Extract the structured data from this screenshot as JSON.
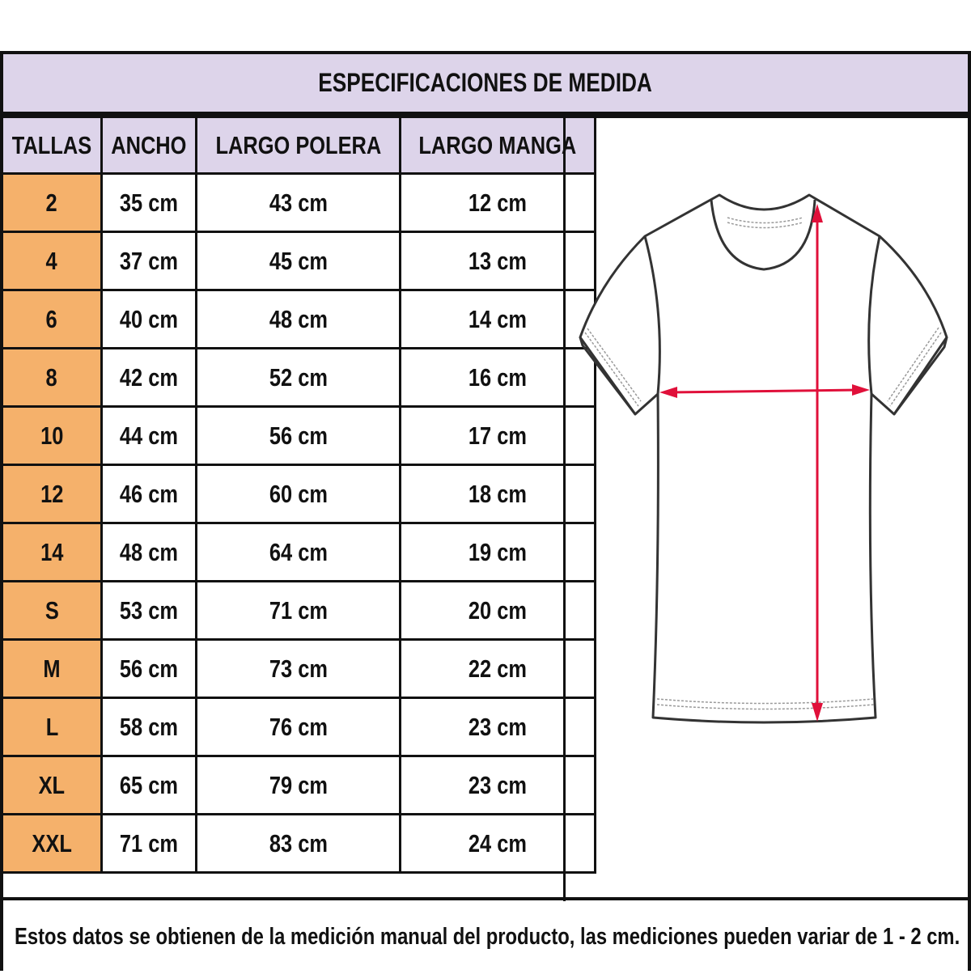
{
  "title": "ESPECIFICACIONES DE MEDIDA",
  "columns": [
    "TALLAS",
    "ANCHO",
    "LARGO POLERA",
    "LARGO MANGA"
  ],
  "rows": [
    [
      "2",
      "35 cm",
      "43 cm",
      "12 cm"
    ],
    [
      "4",
      "37 cm",
      "45 cm",
      "13 cm"
    ],
    [
      "6",
      "40 cm",
      "48 cm",
      "14 cm"
    ],
    [
      "8",
      "42 cm",
      "52 cm",
      "16 cm"
    ],
    [
      "10",
      "44 cm",
      "56 cm",
      "17 cm"
    ],
    [
      "12",
      "46 cm",
      "60 cm",
      "18 cm"
    ],
    [
      "14",
      "48 cm",
      "64 cm",
      "19 cm"
    ],
    [
      "S",
      "53 cm",
      "71 cm",
      "20 cm"
    ],
    [
      "M",
      "56 cm",
      "73 cm",
      "22 cm"
    ],
    [
      "L",
      "58 cm",
      "76 cm",
      "23 cm"
    ],
    [
      "XL",
      "65 cm",
      "79 cm",
      "23 cm"
    ],
    [
      "XXL",
      "71 cm",
      "83 cm",
      "24 cm"
    ]
  ],
  "footer": "Estos datos se obtienen de la medición manual del producto, las mediciones pueden variar de 1 - 2 cm.",
  "colors": {
    "header_bg": "#ddd4ea",
    "size_bg": "#f5b16b",
    "arrow": "#e0103a"
  },
  "illustration": "t-shirt-measurement-diagram"
}
